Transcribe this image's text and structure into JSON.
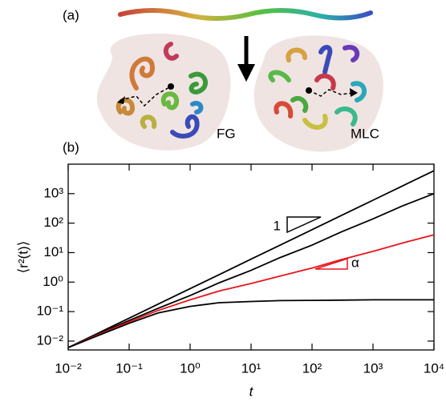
{
  "chart_data": {
    "type": "line",
    "x_label": "t",
    "y_label": "⟨r²(t)⟩",
    "log_x": true,
    "log_y": true,
    "x": [
      0.01,
      0.03,
      0.1,
      0.3,
      1,
      3,
      10,
      30,
      100,
      300,
      1000,
      3000,
      10000
    ],
    "series": [
      {
        "color": "#000000",
        "values": [
          0.006,
          0.018,
          0.06,
          0.18,
          0.6,
          1.8,
          6,
          18,
          60,
          180,
          600,
          1800,
          6000
        ]
      },
      {
        "color": "#000000",
        "values": [
          0.006,
          0.017,
          0.05,
          0.13,
          0.35,
          0.95,
          2.5,
          6.8,
          18,
          50,
          140,
          380,
          1000
        ]
      },
      {
        "color": "#e8161b",
        "values": [
          0.006,
          0.016,
          0.045,
          0.11,
          0.25,
          0.5,
          0.9,
          1.6,
          3,
          5.8,
          11,
          21,
          40
        ]
      },
      {
        "color": "#000000",
        "values": [
          0.006,
          0.015,
          0.04,
          0.09,
          0.15,
          0.2,
          0.22,
          0.235,
          0.24,
          0.245,
          0.25,
          0.25,
          0.25
        ]
      }
    ],
    "xlim": [
      0.01,
      10000
    ],
    "ylim": [
      0.005,
      10000
    ],
    "xticks": [
      {
        "value": 0.01,
        "label": "10⁻²"
      },
      {
        "value": 0.1,
        "label": "10⁻¹"
      },
      {
        "value": 1,
        "label": "10⁰"
      },
      {
        "value": 10,
        "label": "10¹"
      },
      {
        "value": 100,
        "label": "10²"
      },
      {
        "value": 1000,
        "label": "10³"
      },
      {
        "value": 10000,
        "label": "10⁴"
      }
    ],
    "yticks": [
      {
        "value": 0.01,
        "label": "10⁻²"
      },
      {
        "value": 0.1,
        "label": "10⁻¹"
      },
      {
        "value": 1,
        "label": "10⁰"
      },
      {
        "value": 10,
        "label": "10¹"
      },
      {
        "value": 100,
        "label": "10²"
      },
      {
        "value": 1000,
        "label": "10³"
      }
    ],
    "annotations": [
      "(a)",
      "(b)",
      "FG",
      "MLC",
      "1",
      "α"
    ]
  }
}
